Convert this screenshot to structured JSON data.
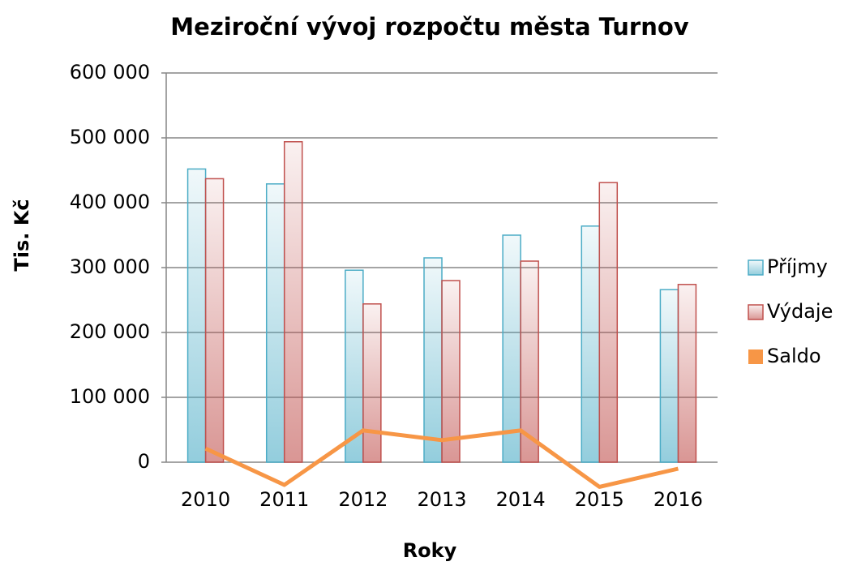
{
  "chart_data": {
    "type": "bar_line",
    "title": "Meziroční vývoj rozpočtu města Turnov",
    "x_label": "Roky",
    "y_label": "Tis. Kč",
    "categories": [
      "2010",
      "2011",
      "2012",
      "2013",
      "2014",
      "2015",
      "2016"
    ],
    "series": [
      {
        "name": "Příjmy",
        "type": "bar",
        "color": "#4bacc6",
        "values": [
          452000,
          429000,
          296000,
          315000,
          350000,
          364000,
          266000
        ]
      },
      {
        "name": "Výdaje",
        "type": "bar",
        "color": "#c0504d",
        "values": [
          437000,
          494000,
          244000,
          280000,
          310000,
          431000,
          274000
        ]
      },
      {
        "name": "Saldo",
        "type": "line",
        "color": "#f79646",
        "values": [
          21000,
          -35000,
          49000,
          34000,
          49000,
          -38000,
          -10000
        ]
      }
    ],
    "ylim": [
      0,
      600000
    ],
    "yticks": [
      {
        "value": 0,
        "label": "0"
      },
      {
        "value": 100000,
        "label": "100 000"
      },
      {
        "value": 200000,
        "label": "200 000"
      },
      {
        "value": 300000,
        "label": "300 000"
      },
      {
        "value": 400000,
        "label": "400 000"
      },
      {
        "value": 500000,
        "label": "500 000"
      },
      {
        "value": 600000,
        "label": "600 000"
      }
    ],
    "grid": true,
    "legend": "right"
  }
}
